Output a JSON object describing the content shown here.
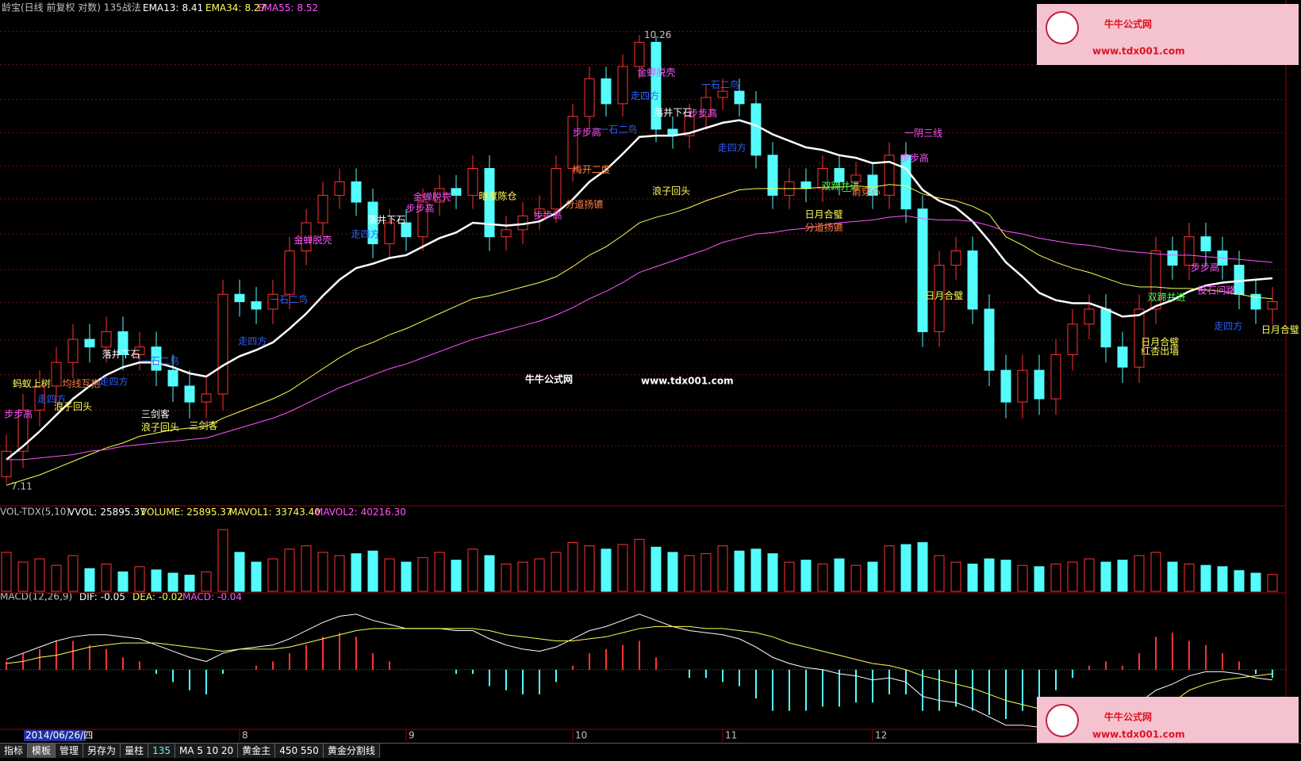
{
  "chart_data": {
    "type": "candlestick",
    "title": "龄宝(日线 前复权 对数) 135战法",
    "log": true,
    "ylim": [
      7.0,
      10.45
    ],
    "up_color": "#ff3232",
    "down_color": "#54fcfc",
    "open": [
      7.15,
      7.3,
      7.55,
      7.7,
      7.85,
      8.0,
      7.95,
      8.05,
      7.9,
      7.95,
      7.8,
      7.7,
      7.6,
      7.65,
      8.3,
      8.25,
      8.2,
      8.3,
      8.6,
      8.8,
      9.0,
      9.1,
      8.95,
      8.65,
      8.8,
      8.7,
      8.95,
      9.05,
      9.0,
      9.2,
      8.7,
      8.75,
      8.85,
      8.9,
      9.2,
      9.6,
      9.9,
      9.7,
      10.0,
      10.2,
      9.5,
      9.45,
      9.6,
      9.75,
      9.8,
      9.7,
      9.3,
      9.0,
      9.1,
      9.05,
      9.2,
      9.1,
      9.15,
      9.0,
      9.3,
      8.9,
      8.05,
      8.5,
      8.6,
      8.2,
      7.8,
      7.6,
      7.8,
      7.62,
      7.9,
      8.1,
      8.2,
      7.95,
      7.82,
      8.2,
      8.6,
      8.5,
      8.7,
      8.6,
      8.5,
      8.3,
      8.2
    ],
    "high": [
      7.4,
      7.65,
      7.8,
      7.95,
      8.1,
      8.1,
      8.15,
      8.15,
      8.05,
      8.05,
      7.9,
      7.8,
      7.75,
      8.4,
      8.4,
      8.35,
      8.4,
      8.7,
      8.9,
      9.1,
      9.2,
      9.2,
      9.05,
      8.9,
      8.9,
      9.05,
      9.15,
      9.15,
      9.3,
      9.3,
      8.85,
      8.95,
      9.0,
      9.3,
      9.7,
      10.0,
      10.0,
      10.1,
      10.26,
      10.25,
      9.6,
      9.7,
      9.85,
      9.9,
      9.9,
      9.8,
      9.4,
      9.2,
      9.2,
      9.3,
      9.3,
      9.25,
      9.25,
      9.4,
      9.4,
      9.0,
      8.6,
      8.7,
      8.7,
      8.3,
      7.9,
      7.9,
      7.9,
      8.0,
      8.2,
      8.3,
      8.3,
      8.05,
      8.3,
      8.7,
      8.7,
      8.8,
      8.8,
      8.7,
      8.6,
      8.4,
      8.35
    ],
    "low": [
      7.11,
      7.2,
      7.45,
      7.6,
      7.75,
      7.85,
      7.85,
      7.8,
      7.8,
      7.7,
      7.6,
      7.5,
      7.5,
      7.55,
      8.15,
      8.1,
      8.1,
      8.2,
      8.5,
      8.7,
      8.9,
      8.85,
      8.55,
      8.55,
      8.6,
      8.6,
      8.85,
      8.9,
      8.9,
      8.6,
      8.6,
      8.65,
      8.75,
      8.8,
      9.1,
      9.5,
      9.6,
      9.6,
      9.9,
      9.4,
      9.35,
      9.35,
      9.5,
      9.65,
      9.6,
      9.2,
      8.9,
      8.9,
      8.95,
      8.95,
      9.0,
      9.0,
      8.9,
      8.9,
      8.8,
      7.95,
      7.95,
      8.4,
      8.1,
      7.7,
      7.5,
      7.5,
      7.52,
      7.52,
      7.8,
      8.0,
      7.85,
      7.72,
      7.72,
      8.1,
      8.4,
      8.4,
      8.5,
      8.4,
      8.2,
      8.1,
      8.1
    ],
    "close": [
      7.3,
      7.55,
      7.7,
      7.85,
      8.0,
      7.95,
      8.05,
      7.9,
      7.95,
      7.8,
      7.7,
      7.6,
      7.65,
      8.3,
      8.25,
      8.2,
      8.3,
      8.6,
      8.8,
      9.0,
      9.1,
      8.95,
      8.65,
      8.8,
      8.7,
      8.95,
      9.05,
      9.0,
      9.2,
      8.7,
      8.75,
      8.85,
      8.9,
      9.2,
      9.6,
      9.9,
      9.7,
      10.0,
      10.2,
      9.5,
      9.45,
      9.6,
      9.75,
      9.8,
      9.7,
      9.3,
      9.0,
      9.1,
      9.05,
      9.2,
      9.1,
      9.15,
      9.0,
      9.3,
      8.9,
      8.05,
      8.5,
      8.6,
      8.2,
      7.8,
      7.6,
      7.8,
      7.62,
      7.9,
      8.1,
      8.2,
      7.95,
      7.82,
      8.2,
      8.6,
      8.5,
      8.7,
      8.6,
      8.5,
      8.3,
      8.2,
      8.25
    ],
    "series": [
      {
        "name": "EMA13:",
        "color": "#ffffff",
        "width": 2.5,
        "values": [
          7.25,
          7.33,
          7.42,
          7.52,
          7.62,
          7.7,
          7.77,
          7.82,
          7.85,
          7.85,
          7.82,
          7.78,
          7.76,
          7.83,
          7.89,
          7.93,
          7.98,
          8.07,
          8.17,
          8.29,
          8.4,
          8.48,
          8.51,
          8.55,
          8.57,
          8.63,
          8.69,
          8.73,
          8.8,
          8.79,
          8.78,
          8.79,
          8.81,
          8.87,
          8.97,
          9.1,
          9.19,
          9.31,
          9.44,
          9.45,
          9.45,
          9.47,
          9.51,
          9.55,
          9.57,
          9.53,
          9.46,
          9.41,
          9.36,
          9.34,
          9.3,
          9.28,
          9.24,
          9.25,
          9.2,
          9.04,
          8.96,
          8.91,
          8.81,
          8.67,
          8.52,
          8.42,
          8.31,
          8.26,
          8.24,
          8.24,
          8.2,
          8.15,
          8.16,
          8.22,
          8.26,
          8.32,
          8.36,
          8.38,
          8.39,
          8.4,
          8.41
        ]
      },
      {
        "name": "EMA34:",
        "color": "#ffff54",
        "width": 1,
        "values": [
          7.1,
          7.13,
          7.16,
          7.2,
          7.24,
          7.28,
          7.32,
          7.35,
          7.39,
          7.41,
          7.43,
          7.44,
          7.45,
          7.5,
          7.54,
          7.58,
          7.62,
          7.67,
          7.74,
          7.81,
          7.88,
          7.94,
          7.98,
          8.03,
          8.07,
          8.12,
          8.17,
          8.22,
          8.27,
          8.29,
          8.32,
          8.35,
          8.38,
          8.42,
          8.49,
          8.57,
          8.63,
          8.71,
          8.8,
          8.84,
          8.87,
          8.91,
          8.96,
          9.0,
          9.04,
          9.05,
          9.05,
          9.05,
          9.05,
          9.06,
          9.06,
          9.07,
          9.06,
          9.08,
          9.07,
          9.01,
          8.98,
          8.96,
          8.92,
          8.86,
          8.7,
          8.64,
          8.57,
          8.52,
          8.48,
          8.45,
          8.41,
          8.37,
          8.35,
          8.35,
          8.34,
          8.34,
          8.33,
          8.32,
          8.3,
          8.28,
          8.27
        ]
      },
      {
        "name": "EMA55:",
        "color": "#ff54ff",
        "width": 1,
        "values": [
          7.25,
          7.25,
          7.26,
          7.27,
          7.28,
          7.3,
          7.31,
          7.33,
          7.34,
          7.35,
          7.36,
          7.37,
          7.38,
          7.41,
          7.44,
          7.47,
          7.5,
          7.54,
          7.59,
          7.64,
          7.69,
          7.73,
          7.77,
          7.81,
          7.84,
          7.88,
          7.92,
          7.96,
          8.0,
          8.03,
          8.06,
          8.09,
          8.12,
          8.16,
          8.21,
          8.27,
          8.32,
          8.38,
          8.45,
          8.49,
          8.53,
          8.57,
          8.61,
          8.66,
          8.69,
          8.72,
          8.73,
          8.75,
          8.76,
          8.78,
          8.8,
          8.81,
          8.82,
          8.84,
          8.85,
          8.83,
          8.82,
          8.82,
          8.81,
          8.78,
          8.74,
          8.72,
          8.69,
          8.67,
          8.65,
          8.64,
          8.62,
          8.6,
          8.59,
          8.58,
          8.57,
          8.57,
          8.56,
          8.55,
          8.54,
          8.53,
          8.52
        ]
      }
    ],
    "annotations": [
      {
        "text": "步步高",
        "color": "#ff54ff"
      },
      {
        "text": "蚂蚁上树",
        "color": "#ffff54"
      },
      {
        "text": "走四方",
        "color": "#3060ff"
      },
      {
        "text": "浪子回头",
        "color": "#ffff54"
      },
      {
        "text": "均线互抱",
        "color": "#ff8040"
      },
      {
        "text": "落井下石",
        "color": "#ffffff"
      },
      {
        "text": "一石二鸟",
        "color": "#3060ff"
      },
      {
        "text": "走四方",
        "color": "#3060ff"
      },
      {
        "text": "三剑客",
        "color": "#ffffff"
      },
      {
        "text": "浪子回头",
        "color": "#ffff54"
      },
      {
        "text": "三剑客",
        "color": "#ffff54"
      },
      {
        "text": "一石二鸟",
        "color": "#3060ff"
      },
      {
        "text": "走四方",
        "color": "#3060ff"
      },
      {
        "text": "金蝉脱壳",
        "color": "#ff54ff"
      },
      {
        "text": "落井下石",
        "color": "#ffffff"
      },
      {
        "text": "金蝉脱壳",
        "color": "#ff54ff"
      },
      {
        "text": "步步高",
        "color": "#ff54ff"
      },
      {
        "text": "走四方",
        "color": "#3060ff"
      },
      {
        "text": "暗度陈仓",
        "color": "#ffff54"
      },
      {
        "text": "步步高",
        "color": "#ff54ff"
      },
      {
        "text": "分道扬镳",
        "color": "#ff8040"
      },
      {
        "text": "梅开二度",
        "color": "#ff8040"
      },
      {
        "text": "步步高",
        "color": "#ff54ff"
      },
      {
        "text": "一石二鸟",
        "color": "#3060ff"
      },
      {
        "text": "金蝉脱壳",
        "color": "#ff54ff"
      },
      {
        "text": "走四方",
        "color": "#3060ff"
      },
      {
        "text": "落井下石",
        "color": "#ffffff"
      },
      {
        "text": "步步高",
        "color": "#ff54ff"
      },
      {
        "text": "一石二鸟",
        "color": "#3060ff"
      },
      {
        "text": "浪子回头",
        "color": "#ffff54"
      },
      {
        "text": "走四方",
        "color": "#3060ff"
      },
      {
        "text": "日月合璧",
        "color": "#ffff54"
      },
      {
        "text": "分道扬镳",
        "color": "#ff8040"
      },
      {
        "text": "双蹄并进",
        "color": "#54ff54"
      },
      {
        "text": "一箭穿心",
        "color": "#ff8040"
      },
      {
        "text": "一阴三线",
        "color": "#ff54ff"
      },
      {
        "text": "步步高",
        "color": "#ff54ff"
      },
      {
        "text": "日月合璧",
        "color": "#ffff54"
      },
      {
        "text": "双蹄并进",
        "color": "#54ff54"
      },
      {
        "text": "步步高",
        "color": "#ff54ff"
      },
      {
        "text": "投石问路",
        "color": "#ff54ff"
      },
      {
        "text": "走四方",
        "color": "#3060ff"
      },
      {
        "text": "日月合璧",
        "color": "#ffff54"
      },
      {
        "text": "红杏出墙",
        "color": "#ffff54"
      },
      {
        "text": "日月合璧",
        "color": "#ffff54"
      }
    ],
    "volume": {
      "title": "VOL-TDX(5,10)",
      "ylim": [
        0,
        100000
      ],
      "values": [
        60000,
        45000,
        50000,
        40000,
        55000,
        35000,
        42000,
        30000,
        38000,
        33000,
        28000,
        25000,
        30000,
        95000,
        60000,
        45000,
        50000,
        65000,
        70000,
        60000,
        55000,
        58000,
        62000,
        50000,
        45000,
        52000,
        60000,
        48000,
        65000,
        55000,
        42000,
        45000,
        50000,
        60000,
        75000,
        70000,
        65000,
        72000,
        80000,
        68000,
        60000,
        55000,
        58000,
        70000,
        62000,
        65000,
        58000,
        45000,
        48000,
        42000,
        50000,
        40000,
        45000,
        70000,
        72000,
        75000,
        55000,
        45000,
        42000,
        50000,
        48000,
        40000,
        38000,
        42000,
        45000,
        50000,
        45000,
        48000,
        55000,
        60000,
        45000,
        42000,
        40000,
        38000,
        32000,
        28000,
        25895.37
      ],
      "vvol_label": "VVOL:",
      "volume_label": "VOLUME:",
      "mavol1": {
        "label": "MAVOL1:",
        "value": 33743.4,
        "value_label": "33743.40"
      },
      "mavol2": {
        "label": "MAVOL2:",
        "value": 40216.3,
        "value_label": "40216.30"
      }
    },
    "macd": {
      "title": "MACD(12,26,9)",
      "ylim": [
        -0.29,
        0.3
      ],
      "dif_label": "DIF:",
      "dea_label": "DEA:",
      "macd_label": "MACD:",
      "dif": [
        0.05,
        0.08,
        0.11,
        0.14,
        0.16,
        0.17,
        0.17,
        0.16,
        0.15,
        0.12,
        0.09,
        0.06,
        0.04,
        0.08,
        0.1,
        0.11,
        0.12,
        0.15,
        0.19,
        0.23,
        0.26,
        0.27,
        0.24,
        0.22,
        0.2,
        0.2,
        0.2,
        0.19,
        0.19,
        0.15,
        0.12,
        0.1,
        0.09,
        0.11,
        0.15,
        0.19,
        0.21,
        0.24,
        0.27,
        0.24,
        0.21,
        0.19,
        0.18,
        0.17,
        0.15,
        0.11,
        0.06,
        0.03,
        0.01,
        0.0,
        -0.02,
        -0.03,
        -0.05,
        -0.04,
        -0.06,
        -0.13,
        -0.15,
        -0.16,
        -0.19,
        -0.23,
        -0.27,
        -0.27,
        -0.28,
        -0.26,
        -0.23,
        -0.2,
        -0.19,
        -0.19,
        -0.16,
        -0.1,
        -0.07,
        -0.03,
        -0.01,
        -0.01,
        -0.02,
        -0.04,
        -0.05
      ],
      "dea": [
        0.03,
        0.04,
        0.06,
        0.07,
        0.09,
        0.11,
        0.12,
        0.13,
        0.13,
        0.13,
        0.12,
        0.11,
        0.1,
        0.09,
        0.1,
        0.1,
        0.1,
        0.11,
        0.13,
        0.15,
        0.17,
        0.19,
        0.2,
        0.2,
        0.2,
        0.2,
        0.2,
        0.2,
        0.2,
        0.19,
        0.17,
        0.16,
        0.15,
        0.14,
        0.14,
        0.15,
        0.16,
        0.18,
        0.2,
        0.21,
        0.21,
        0.21,
        0.2,
        0.2,
        0.19,
        0.18,
        0.16,
        0.13,
        0.11,
        0.09,
        0.07,
        0.05,
        0.03,
        0.02,
        0.0,
        -0.03,
        -0.05,
        -0.07,
        -0.09,
        -0.12,
        -0.15,
        -0.17,
        -0.19,
        -0.21,
        -0.21,
        -0.21,
        -0.21,
        -0.2,
        -0.2,
        -0.18,
        -0.16,
        -0.1,
        -0.07,
        -0.05,
        -0.04,
        -0.03,
        -0.02
      ],
      "hist": [
        0.04,
        0.08,
        0.1,
        0.14,
        0.14,
        0.12,
        0.1,
        0.06,
        0.04,
        -0.02,
        -0.06,
        -0.1,
        -0.12,
        -0.02,
        0.0,
        0.02,
        0.04,
        0.08,
        0.12,
        0.16,
        0.18,
        0.16,
        0.08,
        0.04,
        0.0,
        0.0,
        0.0,
        -0.02,
        -0.02,
        -0.08,
        -0.1,
        -0.12,
        -0.12,
        -0.06,
        0.02,
        0.08,
        0.1,
        0.12,
        0.14,
        0.06,
        0.0,
        -0.04,
        -0.04,
        -0.06,
        -0.08,
        -0.14,
        -0.2,
        -0.2,
        -0.2,
        -0.18,
        -0.18,
        -0.16,
        -0.16,
        -0.12,
        -0.12,
        -0.2,
        -0.2,
        -0.18,
        -0.2,
        -0.22,
        -0.24,
        -0.2,
        -0.18,
        -0.1,
        -0.04,
        0.02,
        0.04,
        0.02,
        0.08,
        0.16,
        0.18,
        0.14,
        0.12,
        0.08,
        0.04,
        -0.02,
        -0.04
      ]
    },
    "cursor_date": "2014/06/26/四",
    "xticks": [
      {
        "value": 14,
        "label": "8"
      },
      {
        "value": 24,
        "label": "9"
      },
      {
        "value": 34,
        "label": "10"
      },
      {
        "value": 43,
        "label": "11"
      },
      {
        "value": 52,
        "label": "12"
      }
    ]
  },
  "toolbar": [
    "指标",
    "模板",
    "管理",
    "另存为",
    "量柱",
    "135",
    "MA 5 10 20",
    "黄金主",
    "450 550",
    "黄金分割线"
  ],
  "watermark": {
    "site": "牛牛公式网",
    "url": "www.tdx001.com"
  }
}
